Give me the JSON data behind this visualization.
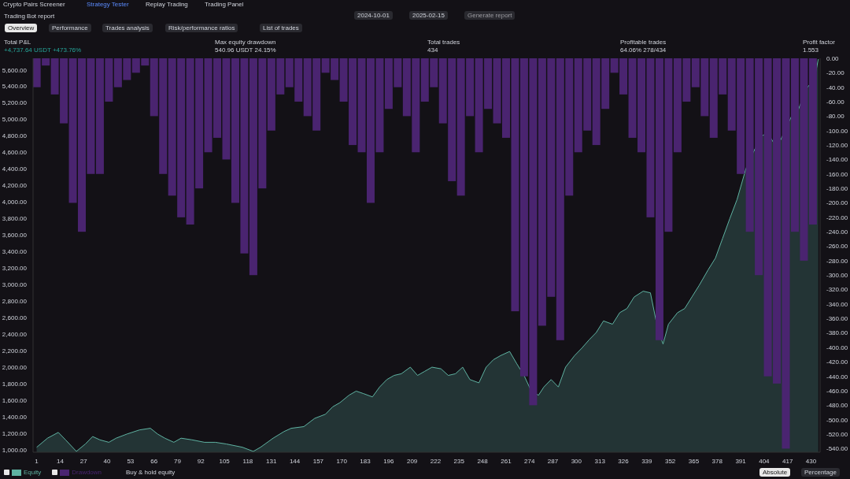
{
  "chart_data": {
    "type": "area",
    "title": "Trading Bot report",
    "annotations": [
      "Crypto Pairs Screener",
      "Strategy Tester",
      "Replay Trading",
      "Trading Panel",
      "2024-10-01",
      "2025-02-15",
      "Generate report",
      "Overview",
      "Performance",
      "Trades analysis",
      "Risk/performance ratios",
      "List of trades",
      "Total P&L",
      "+4,737.64 USDT +473.76%",
      "Max equity drawdown",
      "540.96 USDT 24.15%",
      "Total trades",
      "434",
      "Profitable trades",
      "64.06% 278/434",
      "Profit factor",
      "1.553",
      "Buy & hold equity",
      "Absolute",
      "Percentage"
    ],
    "xlim": [
      -1,
      435
    ],
    "xticks": [
      1,
      14,
      27,
      40,
      53,
      66,
      79,
      92,
      105,
      118,
      131,
      144,
      157,
      170,
      183,
      196,
      209,
      222,
      235,
      248,
      261,
      274,
      287,
      300,
      313,
      326,
      339,
      352,
      365,
      378,
      391,
      404,
      417,
      430
    ],
    "ylim": [
      970,
      5740
    ],
    "yticks": [
      {
        "value": 1000,
        "label": "1,000.00"
      },
      {
        "value": 1200,
        "label": "1,200.00"
      },
      {
        "value": 1400,
        "label": "1,400.00"
      },
      {
        "value": 1600,
        "label": "1,600.00"
      },
      {
        "value": 1800,
        "label": "1,800.00"
      },
      {
        "value": 2000,
        "label": "2,000.00"
      },
      {
        "value": 2200,
        "label": "2,200.00"
      },
      {
        "value": 2400,
        "label": "2,400.00"
      },
      {
        "value": 2600,
        "label": "2,600.00"
      },
      {
        "value": 2800,
        "label": "2,800.00"
      },
      {
        "value": 3000,
        "label": "3,000.00"
      },
      {
        "value": 3200,
        "label": "3,200.00"
      },
      {
        "value": 3400,
        "label": "3,400.00"
      },
      {
        "value": 3600,
        "label": "3,600.00"
      },
      {
        "value": 3800,
        "label": "3,800.00"
      },
      {
        "value": 4000,
        "label": "4,000.00"
      },
      {
        "value": 4200,
        "label": "4,200.00"
      },
      {
        "value": 4400,
        "label": "4,400.00"
      },
      {
        "value": 4600,
        "label": "4,600.00"
      },
      {
        "value": 4800,
        "label": "4,800.00"
      },
      {
        "value": 5000,
        "label": "5,000.00"
      },
      {
        "value": 5200,
        "label": "5,200.00"
      },
      {
        "value": 5400,
        "label": "5,400.00"
      },
      {
        "value": 5600,
        "label": "5,600.00"
      }
    ],
    "y2lim": [
      -545,
      0
    ],
    "y2ticks": [
      {
        "value": 0,
        "label": "0.00"
      },
      {
        "value": -20,
        "label": "-20.00"
      },
      {
        "value": -40,
        "label": "-40.00"
      },
      {
        "value": -60,
        "label": "-60.00"
      },
      {
        "value": -80,
        "label": "-80.00"
      },
      {
        "value": -100,
        "label": "-100.00"
      },
      {
        "value": -120,
        "label": "-120.00"
      },
      {
        "value": -140,
        "label": "-140.00"
      },
      {
        "value": -160,
        "label": "-160.00"
      },
      {
        "value": -180,
        "label": "-180.00"
      },
      {
        "value": -200,
        "label": "-200.00"
      },
      {
        "value": -220,
        "label": "-220.00"
      },
      {
        "value": -240,
        "label": "-240.00"
      },
      {
        "value": -260,
        "label": "-260.00"
      },
      {
        "value": -280,
        "label": "-280.00"
      },
      {
        "value": -300,
        "label": "-300.00"
      },
      {
        "value": -320,
        "label": "-320.00"
      },
      {
        "value": -340,
        "label": "-340.00"
      },
      {
        "value": -360,
        "label": "-360.00"
      },
      {
        "value": -380,
        "label": "-380.00"
      },
      {
        "value": -400,
        "label": "-400.00"
      },
      {
        "value": -420,
        "label": "-420.00"
      },
      {
        "value": -440,
        "label": "-440.00"
      },
      {
        "value": -460,
        "label": "-460.00"
      },
      {
        "value": -480,
        "label": "-480.00"
      },
      {
        "value": -500,
        "label": "-500.00"
      },
      {
        "value": -520,
        "label": "-520.00"
      },
      {
        "value": -540,
        "label": "-540.00"
      }
    ],
    "legend": "bottom left",
    "series": [
      {
        "name": "Drawdown",
        "type": "bar",
        "axis": "y2",
        "color": "#4a2470",
        "x": [
          1,
          6,
          11,
          16,
          21,
          26,
          31,
          36,
          41,
          46,
          51,
          56,
          61,
          66,
          71,
          76,
          81,
          86,
          91,
          96,
          101,
          106,
          111,
          116,
          121,
          126,
          131,
          136,
          141,
          146,
          151,
          156,
          161,
          166,
          171,
          176,
          181,
          186,
          191,
          196,
          201,
          206,
          211,
          216,
          221,
          226,
          231,
          236,
          241,
          246,
          251,
          256,
          261,
          266,
          271,
          276,
          281,
          286,
          291,
          296,
          301,
          306,
          311,
          316,
          321,
          326,
          331,
          336,
          341,
          346,
          351,
          356,
          361,
          366,
          371,
          376,
          381,
          386,
          391,
          396,
          401,
          406,
          411,
          416,
          421,
          426,
          431
        ],
        "values": [
          -40,
          -10,
          -50,
          -90,
          -200,
          -240,
          -160,
          -160,
          -60,
          -40,
          -30,
          -20,
          -10,
          -80,
          -160,
          -190,
          -220,
          -230,
          -180,
          -130,
          -110,
          -140,
          -200,
          -270,
          -300,
          -180,
          -100,
          -50,
          -40,
          -60,
          -80,
          -100,
          -20,
          -30,
          -60,
          -120,
          -130,
          -200,
          -130,
          -70,
          -40,
          -80,
          -130,
          -60,
          -40,
          -90,
          -170,
          -190,
          -80,
          -130,
          -70,
          -90,
          -110,
          -350,
          -440,
          -480,
          -370,
          -330,
          -390,
          -190,
          -130,
          -100,
          -120,
          -70,
          -20,
          -50,
          -110,
          -130,
          -220,
          -390,
          -240,
          -130,
          -60,
          -40,
          -80,
          -110,
          -50,
          -100,
          -160,
          -240,
          -300,
          -440,
          -450,
          -540,
          -240,
          -280,
          -230
        ]
      },
      {
        "name": "Equity",
        "color": "#5fb3a2",
        "x": [
          1,
          7,
          13,
          17,
          23,
          28,
          32,
          36,
          41,
          45,
          51,
          58,
          64,
          68,
          72,
          77,
          81,
          87,
          94,
          100,
          106,
          115,
          121,
          125,
          132,
          138,
          142,
          149,
          155,
          161,
          165,
          169,
          174,
          178,
          182,
          187,
          191,
          195,
          199,
          203,
          208,
          212,
          216,
          220,
          225,
          229,
          233,
          237,
          241,
          246,
          250,
          254,
          258,
          263,
          267,
          271,
          275,
          279,
          282,
          286,
          290,
          294,
          299,
          303,
          307,
          311,
          315,
          320,
          324,
          328,
          332,
          337,
          341,
          345,
          348,
          351,
          356,
          360,
          364,
          368,
          373,
          377,
          381,
          385,
          389,
          394,
          398,
          402,
          406,
          411,
          415,
          419,
          423,
          427,
          432,
          434
        ],
        "values": [
          1030,
          1140,
          1210,
          1120,
          980,
          1070,
          1160,
          1120,
          1090,
          1140,
          1190,
          1240,
          1260,
          1190,
          1140,
          1090,
          1140,
          1120,
          1090,
          1090,
          1070,
          1030,
          980,
          1030,
          1140,
          1220,
          1260,
          1280,
          1380,
          1430,
          1520,
          1570,
          1660,
          1710,
          1680,
          1640,
          1760,
          1850,
          1900,
          1920,
          2000,
          1900,
          1950,
          2000,
          1980,
          1900,
          1920,
          2000,
          1850,
          1810,
          2000,
          2090,
          2140,
          2190,
          2040,
          1900,
          1710,
          1660,
          1760,
          1850,
          1760,
          2000,
          2140,
          2230,
          2330,
          2420,
          2560,
          2520,
          2660,
          2710,
          2850,
          2920,
          2900,
          2470,
          2280,
          2520,
          2660,
          2710,
          2850,
          2990,
          3180,
          3320,
          3560,
          3800,
          4030,
          4410,
          4600,
          4790,
          4840,
          4650,
          4840,
          5030,
          5120,
          5360,
          5500,
          5730
        ]
      }
    ]
  }
}
